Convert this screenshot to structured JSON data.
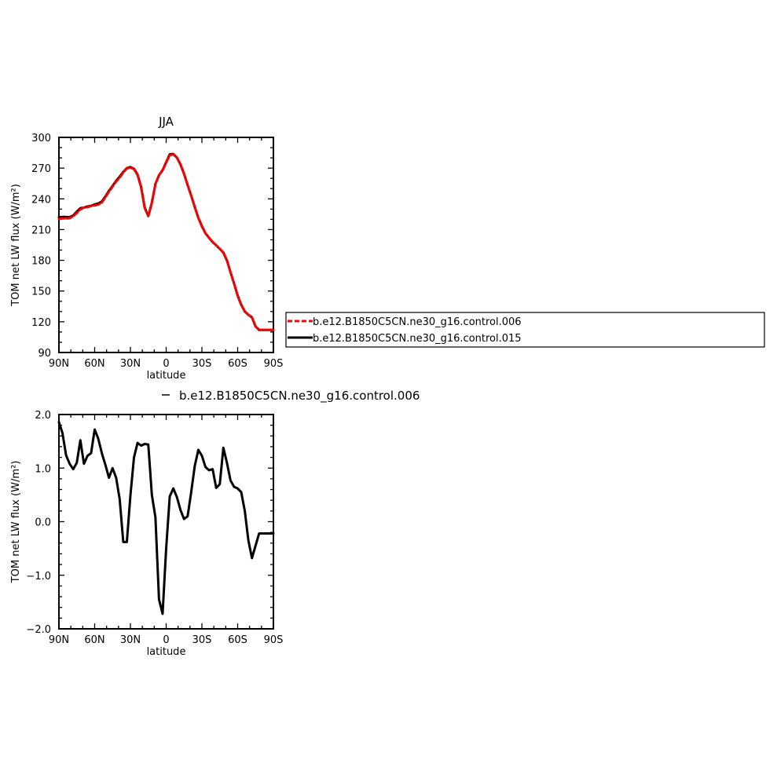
{
  "chart_data": [
    {
      "type": "line",
      "title": "JJA",
      "xlabel": "latitude",
      "ylabel": "TOM net LW flux (W/m²)",
      "x_ticks": [
        "90N",
        "60N",
        "30N",
        "0",
        "30S",
        "60S",
        "90S"
      ],
      "y_ticks": [
        "90",
        "120",
        "150",
        "180",
        "210",
        "240",
        "270",
        "300"
      ],
      "xlim": [
        90,
        -90
      ],
      "ylim": [
        90,
        300
      ],
      "x": [
        90,
        87,
        84,
        81,
        78,
        75,
        72,
        69,
        66,
        63,
        60,
        57,
        54,
        51,
        48,
        45,
        42,
        39,
        36,
        33,
        30,
        27,
        24,
        21,
        18,
        15,
        12,
        9,
        6,
        3,
        0,
        -3,
        -6,
        -9,
        -12,
        -15,
        -18,
        -21,
        -24,
        -27,
        -30,
        -33,
        -36,
        -39,
        -42,
        -45,
        -48,
        -51,
        -54,
        -57,
        -60,
        -63,
        -66,
        -69,
        -72,
        -75,
        -78,
        -81,
        -84,
        -87,
        -90
      ],
      "legend": {
        "placement": "right",
        "entries": [
          {
            "name": "b.e12.B1850C5CN.ne30_g16.control.006",
            "color": "#ff0000",
            "dash": "dashed"
          },
          {
            "name": "b.e12.B1850C5CN.ne30_g16.control.015",
            "color": "#000000",
            "dash": "solid"
          }
        ]
      },
      "series": [
        {
          "name": "b.e12.B1850C5CN.ne30_g16.control.006",
          "color": "#ff0000",
          "values": [
            220.3,
            220.9,
            220.8,
            221.0,
            223.0,
            226.1,
            229.7,
            231.4,
            231.8,
            233.0,
            233.5,
            234.3,
            236.4,
            241.5,
            247.0,
            251.9,
            256.8,
            260.7,
            265.6,
            269.6,
            270.5,
            269.0,
            263.2,
            250.9,
            230.9,
            223.1,
            235.9,
            254.5,
            263.0,
            267.8,
            275.3,
            282.6,
            283.3,
            280.4,
            273.4,
            264.3,
            253.5,
            242.9,
            232.0,
            221.4,
            212.8,
            206.2,
            201.8,
            197.6,
            194.7,
            191.3,
            187.2,
            179.9,
            168.2,
            157.2,
            145.2,
            136.5,
            130.0,
            126.8,
            124.3,
            115.4,
            112.0,
            112.0,
            112.0,
            112.0,
            112.0
          ]
        },
        {
          "name": "b.e12.B1850C5CN.ne30_g16.control.015",
          "color": "#000000",
          "values": [
            222.0,
            222.4,
            222.3,
            222.1,
            223.8,
            227.5,
            230.9,
            231.4,
            232.6,
            233.2,
            234.5,
            235.5,
            237.4,
            242.3,
            247.8,
            252.6,
            257.6,
            261.7,
            266.2,
            270.0,
            271.0,
            269.4,
            263.7,
            251.5,
            231.4,
            223.2,
            236.3,
            254.6,
            263.1,
            268.0,
            275.8,
            283.4,
            283.8,
            280.2,
            273.6,
            264.5,
            253.5,
            243.2,
            232.0,
            221.4,
            213.4,
            206.4,
            202.0,
            197.8,
            194.6,
            191.1,
            187.6,
            179.9,
            168.3,
            157.3,
            145.7,
            136.6,
            130.0,
            126.8,
            124.3,
            115.4,
            112.0,
            112.0,
            112.0,
            112.0,
            112.0
          ]
        }
      ]
    },
    {
      "type": "line",
      "title": "b.e12.B1850C5CN.ne30_g16.control.006",
      "xlabel": "latitude",
      "ylabel": "TOM net LW flux (W/m²)",
      "x_ticks": [
        "90N",
        "60N",
        "30N",
        "0",
        "30S",
        "60S",
        "90S"
      ],
      "y_ticks": [
        "2.0",
        "1.0",
        "0.0",
        "−1.0",
        "−2.0"
      ],
      "xlim": [
        90,
        -90
      ],
      "ylim": [
        -2.0,
        2.0
      ],
      "x": [
        90,
        87,
        84,
        81,
        78,
        75,
        72,
        69,
        66,
        63,
        60,
        57,
        54,
        51,
        48,
        45,
        42,
        39,
        36,
        33,
        30,
        27,
        24,
        21,
        18,
        15,
        12,
        9,
        6,
        3,
        0,
        -3,
        -6,
        -9,
        -12,
        -15,
        -18,
        -21,
        -24,
        -27,
        -30,
        -33,
        -36,
        -39,
        -42,
        -45,
        -48,
        -51,
        -54,
        -57,
        -60,
        -63,
        -66,
        -69,
        -72,
        -75,
        -78,
        -81,
        -84,
        -87,
        -90
      ],
      "series": [
        {
          "name": "",
          "color": "#000000",
          "values": [
            1.86,
            1.65,
            1.24,
            1.08,
            0.98,
            1.1,
            1.52,
            1.08,
            1.23,
            1.28,
            1.72,
            1.55,
            1.28,
            1.06,
            0.82,
            1.0,
            0.82,
            0.42,
            -0.38,
            -0.38,
            0.49,
            1.2,
            1.47,
            1.42,
            1.45,
            1.44,
            0.5,
            0.08,
            -1.45,
            -1.72,
            -0.5,
            0.47,
            0.62,
            0.46,
            0.22,
            0.05,
            0.1,
            0.55,
            1.04,
            1.34,
            1.23,
            1.02,
            0.96,
            0.98,
            0.63,
            0.7,
            1.38,
            1.1,
            0.77,
            0.65,
            0.62,
            0.55,
            0.2,
            -0.35,
            -0.68,
            -0.45,
            -0.22,
            -0.22,
            -0.22,
            -0.22,
            -0.22
          ]
        }
      ]
    }
  ]
}
